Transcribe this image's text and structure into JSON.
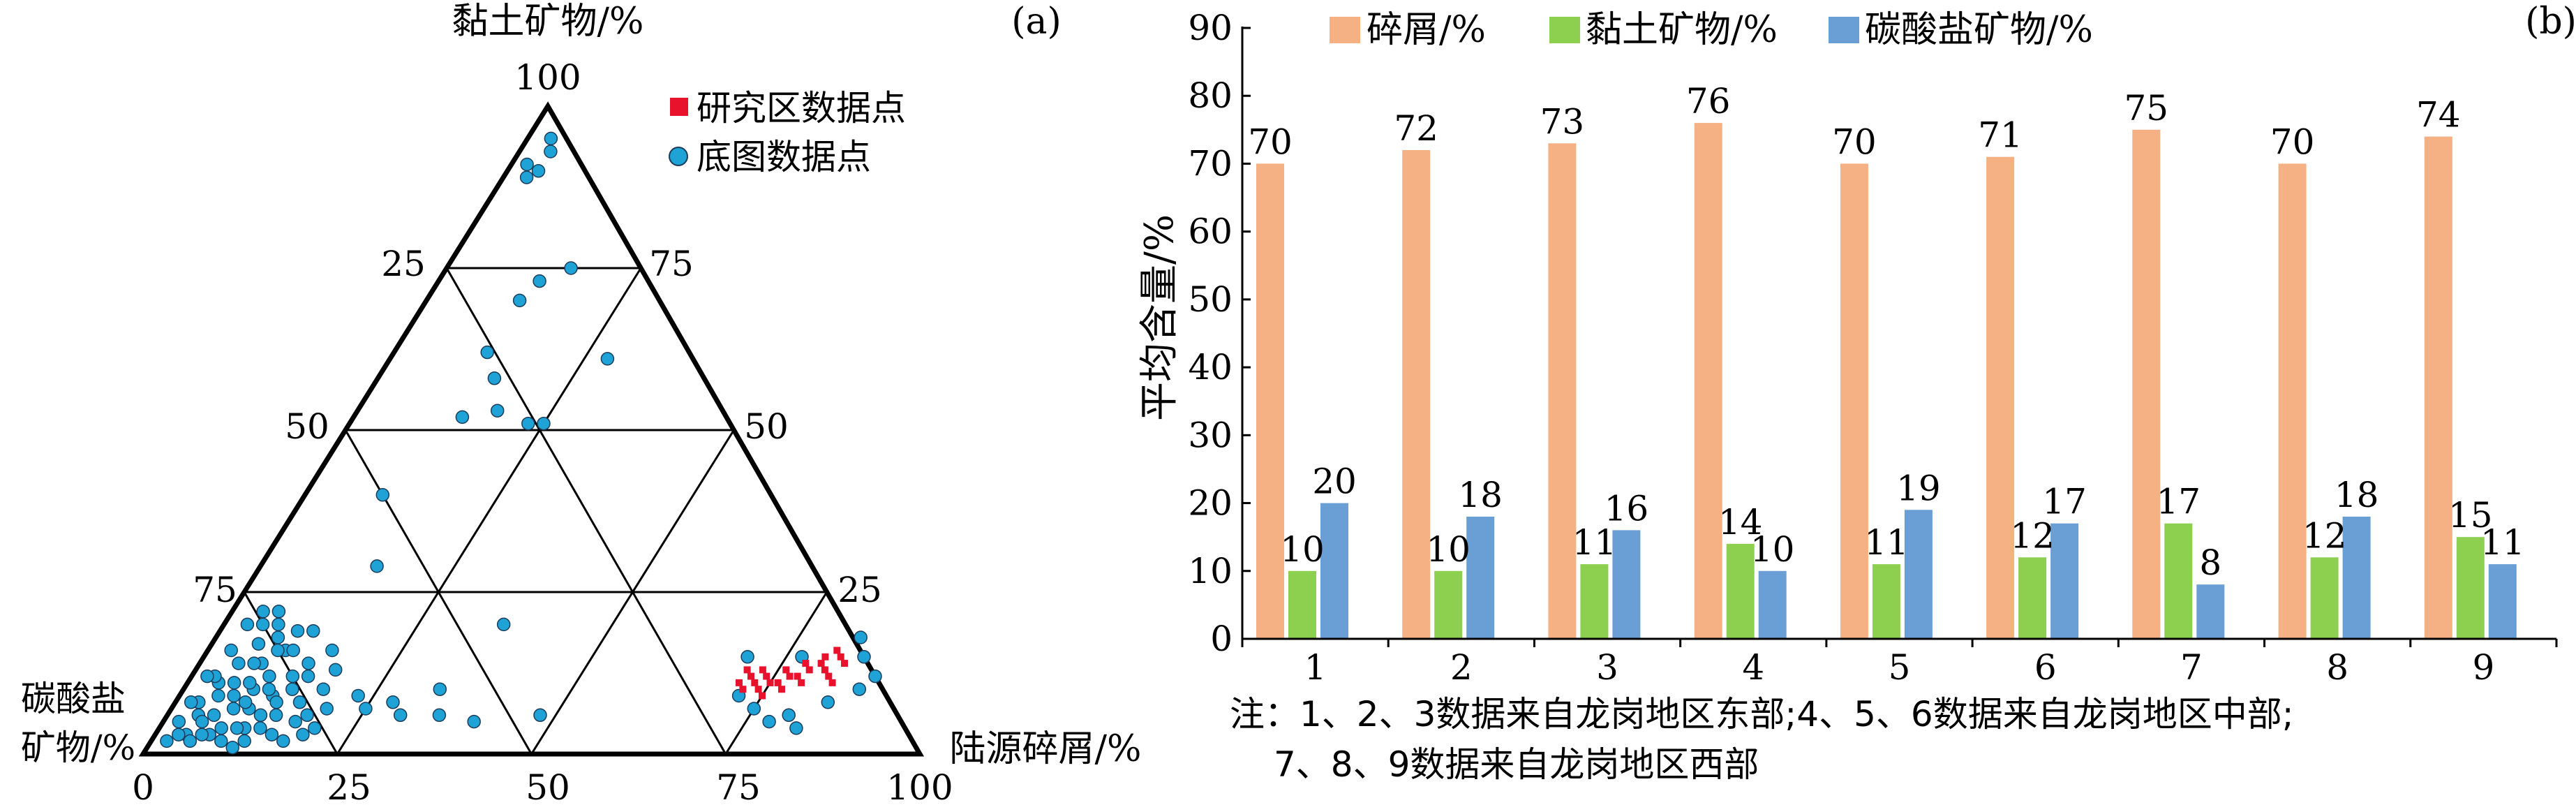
{
  "chart_data": [
    {
      "type": "scatter",
      "panel_label": "(a)",
      "subtype": "ternary",
      "axis_top_label": "黏土矿物/%",
      "axis_left_label": [
        "碳酸盐",
        "矿物/%"
      ],
      "axis_right_label": "陆源碎屑/%",
      "tick_top": "100",
      "left_edge_ticks": [
        "25",
        "50",
        "75"
      ],
      "right_edge_ticks": [
        "75",
        "50",
        "25"
      ],
      "bottom_ticks": [
        "0",
        "25",
        "50",
        "75",
        "100"
      ],
      "legend": [
        {
          "name": "研究区数据点",
          "color": "#e8122d",
          "marker": "square"
        },
        {
          "name": "底图数据点",
          "color": "#1fa2d6",
          "marker": "circle"
        }
      ],
      "series": [
        {
          "name": "研究区数据点",
          "color": "#e8122d",
          "points_detritus_clay": [
            [
              71,
              13
            ],
            [
              72,
              12
            ],
            [
              73,
              13
            ],
            [
              74,
              12
            ],
            [
              75,
              11
            ],
            [
              76,
              11
            ],
            [
              77,
              12
            ],
            [
              78,
              12
            ],
            [
              79,
              13
            ],
            [
              80,
              14
            ],
            [
              81,
              13
            ],
            [
              82,
              12
            ],
            [
              83,
              11
            ],
            [
              82,
              15
            ],
            [
              80,
              15
            ],
            [
              78,
              14
            ],
            [
              76,
              13
            ],
            [
              74,
              10
            ],
            [
              73,
              11
            ],
            [
              72,
              10
            ],
            [
              71,
              11
            ],
            [
              75,
              9
            ],
            [
              77,
              10
            ],
            [
              79,
              11
            ],
            [
              81,
              16
            ],
            [
              83,
              14
            ]
          ]
        },
        {
          "name": "底图数据点",
          "color": "#1fa2d6",
          "points_detritus_clay": [
            [
              3,
              95
            ],
            [
              4,
              93
            ],
            [
              2,
              91
            ],
            [
              3,
              89
            ],
            [
              4,
              90
            ],
            [
              12,
              70
            ],
            [
              13,
              73
            ],
            [
              16,
              75
            ],
            [
              12,
              62
            ],
            [
              15,
              58
            ],
            [
              18,
              53
            ],
            [
              14,
              52
            ],
            [
              23,
              51
            ],
            [
              25,
              51
            ],
            [
              28,
              61
            ],
            [
              10,
              40
            ],
            [
              15,
              29
            ],
            [
              36,
              20
            ],
            [
              6,
              22
            ],
            [
              8,
              18
            ],
            [
              10,
              16
            ],
            [
              18,
              13
            ],
            [
              33,
              10
            ],
            [
              30,
              6
            ],
            [
              35,
              6
            ],
            [
              40,
              5
            ],
            [
              23,
              9
            ],
            [
              28,
              8
            ],
            [
              25,
              7
            ],
            [
              48,
              6
            ],
            [
              20,
              7
            ],
            [
              70,
              15
            ],
            [
              72,
              9
            ],
            [
              75,
              7
            ],
            [
              78,
              5
            ],
            [
              82,
              4
            ],
            [
              84,
              8
            ],
            [
              87,
              10
            ],
            [
              88,
              12
            ],
            [
              85,
              15
            ],
            [
              83,
              18
            ],
            [
              80,
              6
            ],
            [
              77,
              15
            ],
            [
              2,
              5
            ],
            [
              3,
              8
            ],
            [
              4,
              11
            ],
            [
              5,
              14
            ],
            [
              6,
              17
            ],
            [
              7,
              20
            ],
            [
              3,
              16
            ],
            [
              5,
              20
            ],
            [
              8,
              14
            ],
            [
              9,
              10
            ],
            [
              10,
              7
            ],
            [
              11,
              4
            ],
            [
              12,
              9
            ],
            [
              13,
              12
            ],
            [
              14,
              6
            ],
            [
              15,
              3
            ],
            [
              6,
              6
            ],
            [
              7,
              9
            ],
            [
              8,
              4
            ],
            [
              4,
              3
            ],
            [
              5,
              2
            ],
            [
              2,
              2
            ],
            [
              3,
              12
            ],
            [
              6,
              11
            ],
            [
              9,
              8
            ],
            [
              10,
              12
            ],
            [
              11,
              16
            ],
            [
              12,
              19
            ],
            [
              14,
              10
            ],
            [
              16,
              8
            ],
            [
              13,
              4
            ],
            [
              7,
              3
            ],
            [
              8,
              7
            ],
            [
              5,
              9
            ],
            [
              4,
              6
            ],
            [
              2,
              12
            ],
            [
              3,
              20
            ],
            [
              4,
              22
            ],
            [
              9,
              2
            ],
            [
              11,
              1
            ],
            [
              12,
              2
            ],
            [
              15,
              12
            ],
            [
              16,
              16
            ],
            [
              17,
              5
            ],
            [
              18,
              10
            ],
            [
              19,
              3
            ],
            [
              6,
              3
            ],
            [
              7,
              14
            ],
            [
              10,
              4
            ],
            [
              3,
              3
            ],
            [
              2,
              8
            ],
            [
              5,
              5
            ],
            [
              8,
              11
            ],
            [
              9,
              16
            ],
            [
              13,
              8
            ],
            [
              14,
              14
            ],
            [
              11,
              10
            ],
            [
              12,
              6
            ],
            [
              10,
              19
            ],
            [
              17,
              2
            ],
            [
              18,
              6
            ],
            [
              20,
              4
            ]
          ]
        }
      ]
    },
    {
      "type": "bar",
      "panel_label": "(b)",
      "categories": [
        "1",
        "2",
        "3",
        "4",
        "5",
        "6",
        "7",
        "8",
        "9"
      ],
      "ylabel": "平均含量/%",
      "ylim": [
        0,
        90
      ],
      "yticks": [
        "0",
        "10",
        "20",
        "30",
        "40",
        "50",
        "60",
        "70",
        "80",
        "90"
      ],
      "legend_position": "top",
      "series": [
        {
          "name": "碎屑/%",
          "color": "#f5b183",
          "values": [
            70,
            72,
            73,
            76,
            70,
            71,
            75,
            70,
            74
          ]
        },
        {
          "name": "黏土矿物/%",
          "color": "#8dcf4e",
          "values": [
            10,
            10,
            11,
            14,
            11,
            12,
            17,
            12,
            15
          ]
        },
        {
          "name": "碳酸盐矿物/%",
          "color": "#6a9fd6",
          "values": [
            20,
            18,
            16,
            10,
            19,
            17,
            8,
            18,
            11
          ]
        }
      ]
    }
  ],
  "note": {
    "line1": "注：1、2、3数据来自龙岗地区东部;4、5、6数据来自龙岗地区中部;",
    "line2": "7、8、9数据来自龙岗地区西部"
  }
}
